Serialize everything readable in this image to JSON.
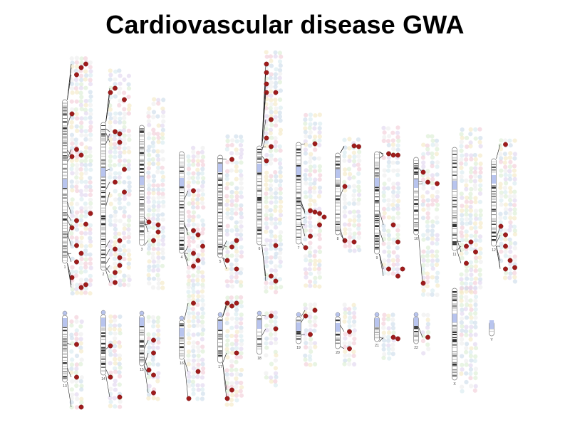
{
  "title": "Cardiovascular disease GWA",
  "colors": {
    "hit": "#9e1b1b",
    "hit_stroke": "#6e0f0f",
    "faint_palette": [
      "#c9dbea",
      "#f2c9d6",
      "#d9ecd0",
      "#f3e7c2",
      "#e0d4ee",
      "#d6e9ef",
      "#ececec"
    ],
    "centromere": "#b8c4ee",
    "band_dark": "#333333",
    "band_mid": "#8a8a8a",
    "band_light": "#cfcfcf"
  },
  "chromosomes": [
    {
      "label": "1"
    },
    {
      "label": "2"
    },
    {
      "label": "3"
    },
    {
      "label": "4"
    },
    {
      "label": "5"
    },
    {
      "label": "6"
    },
    {
      "label": "7"
    },
    {
      "label": "8"
    },
    {
      "label": "9"
    },
    {
      "label": "10"
    },
    {
      "label": "11"
    },
    {
      "label": "12"
    },
    {
      "label": "13"
    },
    {
      "label": "14"
    },
    {
      "label": "15"
    },
    {
      "label": "16"
    },
    {
      "label": "17"
    },
    {
      "label": "18"
    },
    {
      "label": "19"
    },
    {
      "label": "20"
    },
    {
      "label": "21"
    },
    {
      "label": "22"
    },
    {
      "label": "X"
    },
    {
      "label": "Y"
    }
  ]
}
